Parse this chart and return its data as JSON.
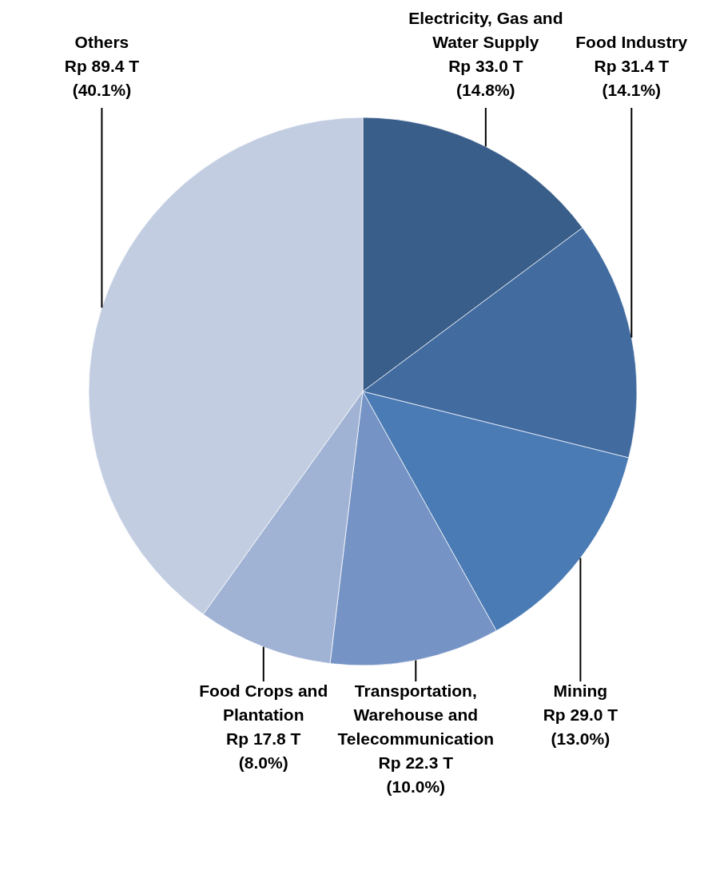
{
  "chart_data": {
    "type": "pie",
    "categories": [
      "Electricity, Gas and Water Supply",
      "Food Industry",
      "Mining",
      "Transportation, Warehouse and Telecommunication",
      "Food Crops and Plantation",
      "Others"
    ],
    "values": [
      33.0,
      31.4,
      29.0,
      22.3,
      17.8,
      89.4
    ],
    "value_labels": [
      "Rp 33.0 T\n(14.8%)",
      "Rp 31.4 T\n(14.1%)",
      "Rp 29.0 T\n(13.0%)",
      "Rp 22.3 T\n(10.0%)",
      "Rp 17.8 T\n(8.0%)",
      "Rp 89.4 T\n(40.1%)"
    ],
    "colors": [
      "#3a5e8a",
      "#426ca0",
      "#4a7bb5",
      "#7594c5",
      "#a1b3d5",
      "#c2cde1"
    ]
  }
}
